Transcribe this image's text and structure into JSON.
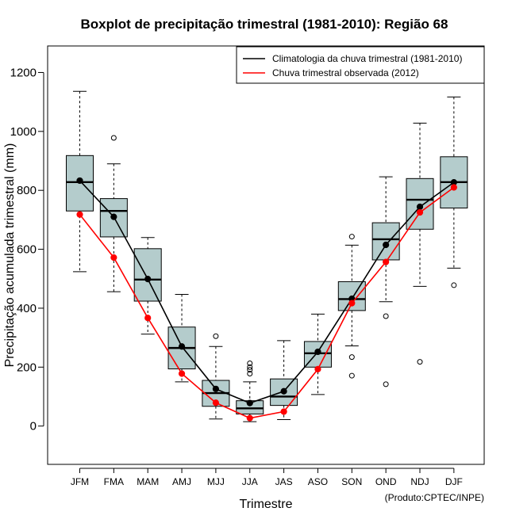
{
  "chart_data": {
    "type": "boxplot",
    "title": "Boxplot de precipitação trimestral (1981-2010): Região 68",
    "xlabel": "Trimestre",
    "ylabel": "Precipitação acumulada trimestral (mm)",
    "ylim": [
      -130,
      1290
    ],
    "yticks": [
      0,
      200,
      400,
      600,
      800,
      1000,
      1200
    ],
    "categories": [
      "JFM",
      "FMA",
      "MAM",
      "AMJ",
      "MJJ",
      "JJA",
      "JAS",
      "ASO",
      "SON",
      "OND",
      "NDJ",
      "DJF"
    ],
    "boxes": [
      {
        "label": "JFM",
        "whisker_low": 524,
        "q1": 730,
        "median": 828,
        "q3": 918,
        "whisker_high": 1136,
        "outliers": []
      },
      {
        "label": "FMA",
        "whisker_low": 456,
        "q1": 642,
        "median": 730,
        "q3": 772,
        "whisker_high": 890,
        "outliers": [
          978
        ]
      },
      {
        "label": "MAM",
        "whisker_low": 312,
        "q1": 424,
        "median": 497,
        "q3": 602,
        "whisker_high": 640,
        "outliers": []
      },
      {
        "label": "AMJ",
        "whisker_low": 150,
        "q1": 194,
        "median": 265,
        "q3": 336,
        "whisker_high": 447,
        "outliers": []
      },
      {
        "label": "MJJ",
        "whisker_low": 24,
        "q1": 67,
        "median": 112,
        "q3": 155,
        "whisker_high": 270,
        "outliers": [
          305
        ]
      },
      {
        "label": "JJA",
        "whisker_low": 15,
        "q1": 41,
        "median": 60,
        "q3": 86,
        "whisker_high": 150,
        "outliers": [
          178,
          191,
          200,
          213
        ]
      },
      {
        "label": "JAS",
        "whisker_low": 22,
        "q1": 70,
        "median": 100,
        "q3": 160,
        "whisker_high": 290,
        "outliers": []
      },
      {
        "label": "ASO",
        "whisker_low": 107,
        "q1": 200,
        "median": 247,
        "q3": 287,
        "whisker_high": 380,
        "outliers": []
      },
      {
        "label": "SON",
        "whisker_low": 272,
        "q1": 392,
        "median": 431,
        "q3": 490,
        "whisker_high": 614,
        "outliers": [
          643,
          234,
          171
        ]
      },
      {
        "label": "OND",
        "whisker_low": 422,
        "q1": 564,
        "median": 634,
        "q3": 690,
        "whisker_high": 846,
        "outliers": [
          373,
          142
        ]
      },
      {
        "label": "NDJ",
        "whisker_low": 474,
        "q1": 668,
        "median": 768,
        "q3": 840,
        "whisker_high": 1028,
        "outliers": [
          218
        ]
      },
      {
        "label": "DJF",
        "whisker_low": 536,
        "q1": 740,
        "median": 828,
        "q3": 914,
        "whisker_high": 1117,
        "outliers": [
          478
        ]
      }
    ],
    "series": [
      {
        "name": "Climatologia da chuva trimestral (1981-2010)",
        "color": "#000000",
        "values": [
          833,
          710,
          499,
          270,
          126,
          78,
          118,
          252,
          432,
          615,
          744,
          827
        ]
      },
      {
        "name": "Chuva trimestral observada (2012)",
        "color": "#ff0000",
        "values": [
          718,
          572,
          367,
          178,
          79,
          27,
          49,
          193,
          417,
          557,
          725,
          810
        ]
      }
    ],
    "box_fill": "#b4cccc",
    "legend_position": "top-right",
    "credit": "(Produto:CPTEC/INPE)"
  }
}
